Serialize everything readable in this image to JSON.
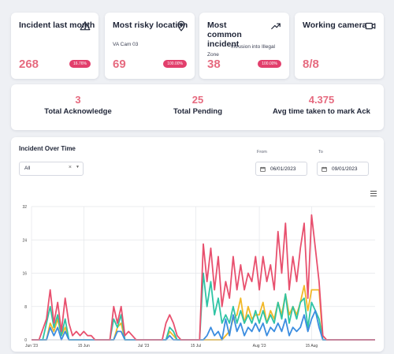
{
  "kpis": [
    {
      "title": "Incident last month",
      "icon": "alert-triangle-icon",
      "value": "268",
      "badge": "16.76%"
    },
    {
      "title": "Most risky location",
      "icon": "map-pin-icon",
      "sub": "VA Cam 03",
      "value": "69",
      "badge": "100.00%"
    },
    {
      "title": "Most common incident",
      "icon": "trending-up-icon",
      "sub": "Intrusion into Illegal",
      "sub2": "Zone",
      "value": "38",
      "badge": "100.00%"
    },
    {
      "title": "Working camera",
      "icon": "video-camera-icon",
      "value": "8/8"
    }
  ],
  "summary": [
    {
      "value": "3",
      "label": "Total Acknowledge"
    },
    {
      "value": "25",
      "label": "Total Pending"
    },
    {
      "value": "4.375",
      "label": "Avg time taken to mark Ack"
    }
  ],
  "chart_panel": {
    "title": "Incident Over Time",
    "filter_value": "All",
    "from_label": "From",
    "from_value": "06/01/2023",
    "to_label": "To",
    "to_value": "09/01/2023"
  },
  "chart_data": {
    "type": "line",
    "title": "",
    "xlabel": "",
    "ylabel": "",
    "ylim": [
      0,
      32
    ],
    "y_ticks": [
      0,
      8,
      16,
      24,
      32
    ],
    "x_range": [
      "2023-06-01",
      "2023-09-01"
    ],
    "x_ticks": [
      {
        "date": "2023-06-01",
        "label": "Jun '23"
      },
      {
        "date": "2023-06-15",
        "label": "15 Jun"
      },
      {
        "date": "2023-07-01",
        "label": "Jul '23"
      },
      {
        "date": "2023-07-15",
        "label": "15 Jul"
      },
      {
        "date": "2023-08-01",
        "label": "Aug '23"
      },
      {
        "date": "2023-08-15",
        "label": "15 Aug"
      }
    ],
    "grid": true,
    "legend": "none",
    "series": [
      {
        "color": "#e8506e",
        "points": [
          [
            "2023-06-01",
            0
          ],
          [
            "2023-06-03",
            0
          ],
          [
            "2023-06-05",
            5
          ],
          [
            "2023-06-06",
            12
          ],
          [
            "2023-06-07",
            4
          ],
          [
            "2023-06-08",
            9
          ],
          [
            "2023-06-09",
            2
          ],
          [
            "2023-06-10",
            10
          ],
          [
            "2023-06-11",
            4
          ],
          [
            "2023-06-12",
            1
          ],
          [
            "2023-06-13",
            2
          ],
          [
            "2023-06-14",
            1
          ],
          [
            "2023-06-15",
            2
          ],
          [
            "2023-06-16",
            1
          ],
          [
            "2023-06-17",
            1
          ],
          [
            "2023-06-18",
            0
          ],
          [
            "2023-06-22",
            0
          ],
          [
            "2023-06-23",
            8
          ],
          [
            "2023-06-24",
            4
          ],
          [
            "2023-06-25",
            8
          ],
          [
            "2023-06-26",
            1
          ],
          [
            "2023-06-27",
            2
          ],
          [
            "2023-06-28",
            1
          ],
          [
            "2023-06-29",
            0
          ],
          [
            "2023-07-06",
            0
          ],
          [
            "2023-07-07",
            4
          ],
          [
            "2023-07-08",
            6
          ],
          [
            "2023-07-09",
            4
          ],
          [
            "2023-07-10",
            1
          ],
          [
            "2023-07-11",
            0
          ],
          [
            "2023-07-16",
            0
          ],
          [
            "2023-07-17",
            23
          ],
          [
            "2023-07-18",
            14
          ],
          [
            "2023-07-19",
            22
          ],
          [
            "2023-07-20",
            12
          ],
          [
            "2023-07-21",
            20
          ],
          [
            "2023-07-22",
            8
          ],
          [
            "2023-07-23",
            14
          ],
          [
            "2023-07-24",
            10
          ],
          [
            "2023-07-25",
            20
          ],
          [
            "2023-07-26",
            12
          ],
          [
            "2023-07-27",
            18
          ],
          [
            "2023-07-28",
            12
          ],
          [
            "2023-07-29",
            16
          ],
          [
            "2023-07-30",
            14
          ],
          [
            "2023-07-31",
            20
          ],
          [
            "2023-08-01",
            12
          ],
          [
            "2023-08-02",
            20
          ],
          [
            "2023-08-03",
            14
          ],
          [
            "2023-08-04",
            18
          ],
          [
            "2023-08-05",
            12
          ],
          [
            "2023-08-06",
            26
          ],
          [
            "2023-08-07",
            16
          ],
          [
            "2023-08-08",
            28
          ],
          [
            "2023-08-09",
            12
          ],
          [
            "2023-08-10",
            20
          ],
          [
            "2023-08-11",
            14
          ],
          [
            "2023-08-12",
            22
          ],
          [
            "2023-08-13",
            28
          ],
          [
            "2023-08-14",
            10
          ],
          [
            "2023-08-15",
            30
          ],
          [
            "2023-08-16",
            22
          ],
          [
            "2023-08-17",
            14
          ],
          [
            "2023-08-18",
            1
          ],
          [
            "2023-08-19",
            0
          ],
          [
            "2023-09-01",
            0
          ]
        ]
      },
      {
        "color": "#f2b827",
        "points": [
          [
            "2023-06-01",
            0
          ],
          [
            "2023-06-05",
            0
          ],
          [
            "2023-06-06",
            4
          ],
          [
            "2023-06-07",
            2
          ],
          [
            "2023-06-08",
            5
          ],
          [
            "2023-06-09",
            1
          ],
          [
            "2023-06-10",
            3
          ],
          [
            "2023-06-11",
            0
          ],
          [
            "2023-06-23",
            0
          ],
          [
            "2023-06-24",
            3
          ],
          [
            "2023-06-25",
            4
          ],
          [
            "2023-06-26",
            0
          ],
          [
            "2023-07-07",
            0
          ],
          [
            "2023-07-08",
            2
          ],
          [
            "2023-07-09",
            1
          ],
          [
            "2023-07-10",
            0
          ],
          [
            "2023-07-22",
            0
          ],
          [
            "2023-07-24",
            2
          ],
          [
            "2023-07-25",
            5
          ],
          [
            "2023-07-26",
            6
          ],
          [
            "2023-07-27",
            10
          ],
          [
            "2023-07-28",
            4
          ],
          [
            "2023-07-29",
            8
          ],
          [
            "2023-07-30",
            5
          ],
          [
            "2023-07-31",
            6
          ],
          [
            "2023-08-01",
            6
          ],
          [
            "2023-08-02",
            9
          ],
          [
            "2023-08-03",
            4
          ],
          [
            "2023-08-04",
            7
          ],
          [
            "2023-08-05",
            5
          ],
          [
            "2023-08-06",
            9
          ],
          [
            "2023-08-07",
            6
          ],
          [
            "2023-08-08",
            11
          ],
          [
            "2023-08-09",
            6
          ],
          [
            "2023-08-10",
            8
          ],
          [
            "2023-08-11",
            6
          ],
          [
            "2023-08-12",
            9
          ],
          [
            "2023-08-13",
            13
          ],
          [
            "2023-08-14",
            7
          ],
          [
            "2023-08-15",
            12
          ],
          [
            "2023-08-16",
            12
          ],
          [
            "2023-08-17",
            12
          ],
          [
            "2023-08-18",
            0
          ],
          [
            "2023-09-01",
            0
          ]
        ]
      },
      {
        "color": "#2ec4a4",
        "points": [
          [
            "2023-06-01",
            0
          ],
          [
            "2023-06-04",
            0
          ],
          [
            "2023-06-05",
            4
          ],
          [
            "2023-06-06",
            8
          ],
          [
            "2023-06-07",
            3
          ],
          [
            "2023-06-08",
            6
          ],
          [
            "2023-06-09",
            1
          ],
          [
            "2023-06-10",
            5
          ],
          [
            "2023-06-11",
            0
          ],
          [
            "2023-06-22",
            0
          ],
          [
            "2023-06-23",
            5
          ],
          [
            "2023-06-24",
            3
          ],
          [
            "2023-06-25",
            6
          ],
          [
            "2023-06-26",
            0
          ],
          [
            "2023-07-07",
            0
          ],
          [
            "2023-07-08",
            3
          ],
          [
            "2023-07-09",
            2
          ],
          [
            "2023-07-10",
            0
          ],
          [
            "2023-07-16",
            0
          ],
          [
            "2023-07-17",
            16
          ],
          [
            "2023-07-18",
            8
          ],
          [
            "2023-07-19",
            14
          ],
          [
            "2023-07-20",
            6
          ],
          [
            "2023-07-21",
            10
          ],
          [
            "2023-07-22",
            4
          ],
          [
            "2023-07-23",
            6
          ],
          [
            "2023-07-24",
            4
          ],
          [
            "2023-07-25",
            8
          ],
          [
            "2023-07-26",
            4
          ],
          [
            "2023-07-27",
            7
          ],
          [
            "2023-07-28",
            4
          ],
          [
            "2023-07-29",
            6
          ],
          [
            "2023-07-30",
            4
          ],
          [
            "2023-07-31",
            7
          ],
          [
            "2023-08-01",
            4
          ],
          [
            "2023-08-02",
            7
          ],
          [
            "2023-08-03",
            4
          ],
          [
            "2023-08-04",
            6
          ],
          [
            "2023-08-05",
            4
          ],
          [
            "2023-08-06",
            9
          ],
          [
            "2023-08-07",
            5
          ],
          [
            "2023-08-08",
            11
          ],
          [
            "2023-08-09",
            4
          ],
          [
            "2023-08-10",
            8
          ],
          [
            "2023-08-11",
            5
          ],
          [
            "2023-08-12",
            9
          ],
          [
            "2023-08-13",
            10
          ],
          [
            "2023-08-14",
            3
          ],
          [
            "2023-08-15",
            9
          ],
          [
            "2023-08-16",
            7
          ],
          [
            "2023-08-17",
            5
          ],
          [
            "2023-08-18",
            0
          ],
          [
            "2023-09-01",
            0
          ]
        ]
      },
      {
        "color": "#3b8de0",
        "points": [
          [
            "2023-06-01",
            0
          ],
          [
            "2023-06-05",
            0
          ],
          [
            "2023-06-06",
            3
          ],
          [
            "2023-06-07",
            1
          ],
          [
            "2023-06-08",
            3
          ],
          [
            "2023-06-09",
            0
          ],
          [
            "2023-06-10",
            2
          ],
          [
            "2023-06-11",
            0
          ],
          [
            "2023-06-23",
            0
          ],
          [
            "2023-06-24",
            2
          ],
          [
            "2023-06-25",
            2
          ],
          [
            "2023-06-26",
            0
          ],
          [
            "2023-07-07",
            0
          ],
          [
            "2023-07-08",
            1
          ],
          [
            "2023-07-09",
            0
          ],
          [
            "2023-07-17",
            0
          ],
          [
            "2023-07-18",
            1
          ],
          [
            "2023-07-19",
            3
          ],
          [
            "2023-07-20",
            1
          ],
          [
            "2023-07-21",
            2
          ],
          [
            "2023-07-22",
            0
          ],
          [
            "2023-07-23",
            5
          ],
          [
            "2023-07-24",
            1
          ],
          [
            "2023-07-25",
            6
          ],
          [
            "2023-07-26",
            2
          ],
          [
            "2023-07-27",
            4
          ],
          [
            "2023-07-28",
            1
          ],
          [
            "2023-07-29",
            3
          ],
          [
            "2023-07-30",
            2
          ],
          [
            "2023-07-31",
            4
          ],
          [
            "2023-08-01",
            2
          ],
          [
            "2023-08-02",
            4
          ],
          [
            "2023-08-03",
            1
          ],
          [
            "2023-08-04",
            3
          ],
          [
            "2023-08-05",
            2
          ],
          [
            "2023-08-06",
            4
          ],
          [
            "2023-08-07",
            2
          ],
          [
            "2023-08-08",
            5
          ],
          [
            "2023-08-09",
            1
          ],
          [
            "2023-08-10",
            3
          ],
          [
            "2023-08-11",
            2
          ],
          [
            "2023-08-12",
            3
          ],
          [
            "2023-08-13",
            6
          ],
          [
            "2023-08-14",
            2
          ],
          [
            "2023-08-15",
            5
          ],
          [
            "2023-08-16",
            7
          ],
          [
            "2023-08-17",
            3
          ],
          [
            "2023-08-18",
            0
          ],
          [
            "2023-09-01",
            0
          ]
        ]
      }
    ]
  }
}
